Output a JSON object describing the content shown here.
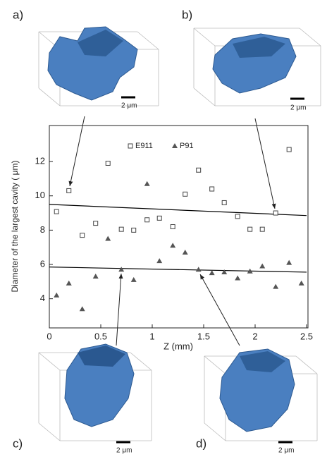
{
  "chart_data": {
    "type": "scatter",
    "ylabel": "Diameter of the largest cavity ( μm)",
    "xlabel": "Z (mm)",
    "xlim": [
      0,
      2.5
    ],
    "xticks": [
      0,
      0.5,
      1,
      1.5,
      2,
      2.5
    ],
    "ylim": [
      2.3,
      14.1
    ],
    "yticks": [
      4,
      6,
      8,
      10,
      12
    ],
    "series": [
      {
        "name": "E911",
        "color": "#444444",
        "marker": "square",
        "x": [
          0.07,
          0.19,
          0.32,
          0.45,
          0.57,
          0.7,
          0.82,
          0.95,
          1.07,
          1.2,
          1.32,
          1.45,
          1.58,
          1.7,
          1.83,
          1.95,
          2.07,
          2.2,
          2.33
        ],
        "values": [
          9.08,
          10.3,
          7.7,
          8.4,
          11.9,
          8.05,
          8.0,
          8.6,
          8.7,
          8.2,
          10.1,
          11.5,
          10.4,
          9.6,
          8.8,
          8.05,
          8.05,
          9.0,
          12.7
        ]
      },
      {
        "name": "P91",
        "color": "#555555",
        "marker": "triangle",
        "x": [
          0.07,
          0.19,
          0.32,
          0.45,
          0.57,
          0.7,
          0.82,
          0.95,
          1.07,
          1.2,
          1.32,
          1.45,
          1.58,
          1.7,
          1.83,
          1.95,
          2.07,
          2.2,
          2.33,
          2.45
        ],
        "values": [
          4.2,
          4.9,
          3.4,
          5.3,
          7.5,
          5.7,
          5.1,
          10.7,
          6.2,
          7.1,
          6.7,
          5.7,
          5.5,
          5.55,
          5.2,
          5.6,
          5.9,
          4.7,
          6.1,
          4.9
        ]
      }
    ],
    "trend_lines": [
      {
        "color": "#000000",
        "x": [
          0,
          2.5
        ],
        "values": [
          9.5,
          8.85
        ]
      },
      {
        "color": "#000000",
        "x": [
          0,
          2.5
        ],
        "values": [
          5.85,
          5.55
        ]
      }
    ],
    "panels": [
      {
        "label": "a)",
        "scale": "2 μm"
      },
      {
        "label": "b)",
        "scale": "2 μm"
      },
      {
        "label": "c)",
        "scale": "2 μm"
      },
      {
        "label": "d)",
        "scale": "2 μm"
      }
    ]
  }
}
